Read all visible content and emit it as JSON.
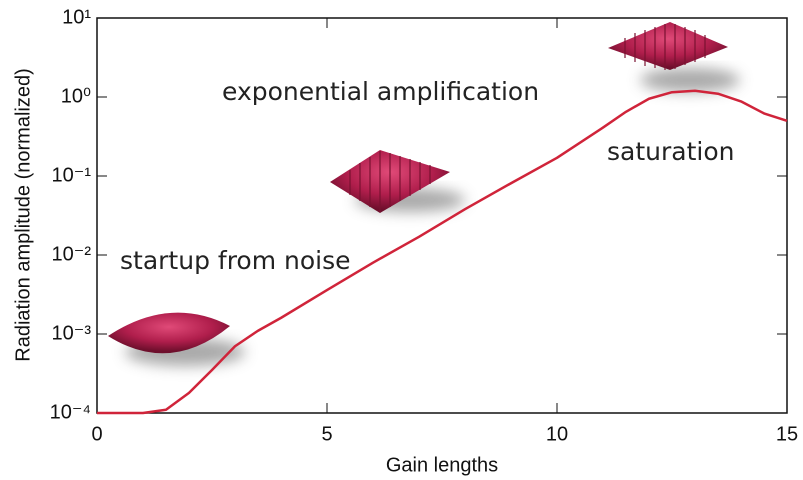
{
  "chart_data": {
    "type": "line",
    "xlabel": "Gain lengths",
    "ylabel": "Radiation amplitude (normalized)",
    "annotations": [
      "startup from noise",
      "exponential amplification",
      "saturation"
    ],
    "x": [
      0,
      1,
      1.5,
      2,
      2.5,
      3,
      3.5,
      4,
      5,
      6,
      7,
      8,
      9,
      10,
      11,
      11.5,
      12,
      12.5,
      13,
      13.5,
      14,
      14.5,
      15
    ],
    "series": [
      {
        "color": "#d0243a",
        "values": [
          0.0001,
          0.0001,
          0.00011,
          0.00018,
          0.00035,
          0.0007,
          0.0011,
          0.0016,
          0.0036,
          0.008,
          0.017,
          0.038,
          0.081,
          0.17,
          0.41,
          0.65,
          0.95,
          1.15,
          1.2,
          1.1,
          0.88,
          0.62,
          0.5
        ]
      }
    ],
    "xlim": [
      0,
      15
    ],
    "xticks": [
      0,
      5,
      10,
      15
    ],
    "ylim": [
      0.0001,
      10
    ],
    "ylog": true,
    "yticks": [
      {
        "value": 0.0001,
        "label": "10⁻⁴"
      },
      {
        "value": 0.001,
        "label": "10⁻³"
      },
      {
        "value": 0.01,
        "label": "10⁻²"
      },
      {
        "value": 0.1,
        "label": "10⁻¹"
      },
      {
        "value": 1,
        "label": "10⁰"
      },
      {
        "value": 10,
        "label": "10¹"
      }
    ]
  }
}
